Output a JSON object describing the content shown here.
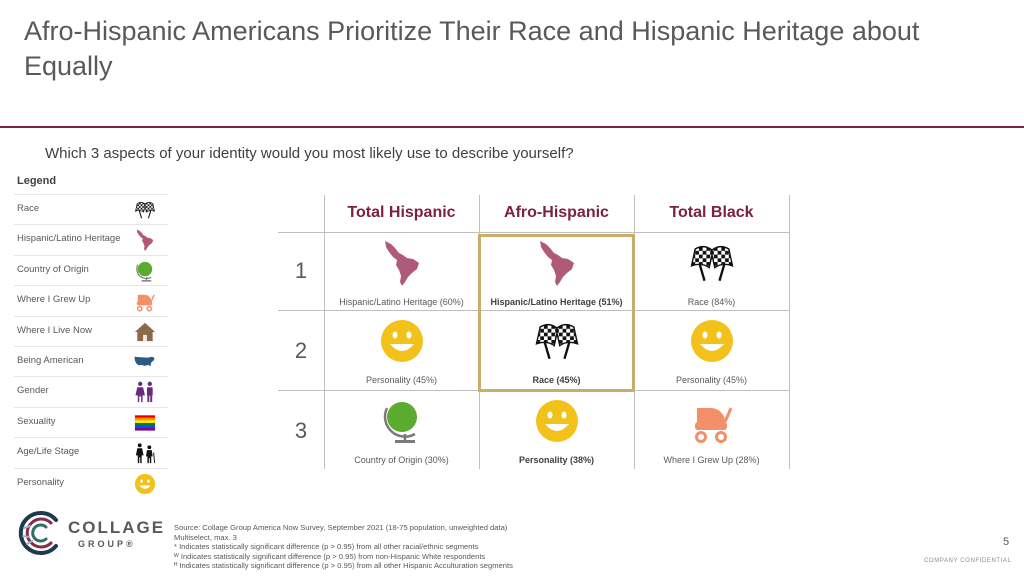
{
  "title": "Afro-Hispanic Americans Prioritize Their Race and Hispanic Heritage about Equally",
  "question": "Which 3 aspects of your identity would you most likely use to describe yourself?",
  "legend": {
    "title": "Legend",
    "items": [
      {
        "label": "Race",
        "icon": "checkered-flags-icon"
      },
      {
        "label": "Hispanic/Latino Heritage",
        "icon": "latin-america-map-icon"
      },
      {
        "label": "Country of Origin",
        "icon": "globe-icon"
      },
      {
        "label": "Where I Grew Up",
        "icon": "baby-stroller-icon"
      },
      {
        "label": "Where I Live Now",
        "icon": "house-icon"
      },
      {
        "label": "Being American",
        "icon": "usa-map-icon"
      },
      {
        "label": "Gender",
        "icon": "gender-icon"
      },
      {
        "label": "Sexuality",
        "icon": "rainbow-flag-icon"
      },
      {
        "label": "Age/Life Stage",
        "icon": "family-icon"
      },
      {
        "label": "Personality",
        "icon": "smiley-icon"
      }
    ]
  },
  "matrix": {
    "columns": [
      "Total Hispanic",
      "Afro-Hispanic",
      "Total Black"
    ],
    "ranks": [
      "1",
      "2",
      "3"
    ],
    "cells": [
      [
        {
          "label": "Hispanic/Latino Heritage (60%)",
          "icon": "latin-america-map-icon",
          "value": 60
        },
        {
          "label": "Hispanic/Latino Heritage  (51%)",
          "icon": "latin-america-map-icon",
          "value": 51
        },
        {
          "label": "Race (84%)",
          "icon": "checkered-flags-icon",
          "value": 84
        }
      ],
      [
        {
          "label": "Personality (45%)",
          "icon": "smiley-icon",
          "value": 45
        },
        {
          "label": "Race (45%)",
          "icon": "checkered-flags-icon",
          "value": 45
        },
        {
          "label": "Personality (45%)",
          "icon": "smiley-icon",
          "value": 45
        }
      ],
      [
        {
          "label": "Country of Origin (30%)",
          "icon": "globe-icon",
          "value": 30
        },
        {
          "label": "Personality (38%)",
          "icon": "smiley-icon",
          "value": 38
        },
        {
          "label": "Where I Grew Up (28%)",
          "icon": "baby-stroller-icon",
          "value": 28
        }
      ]
    ],
    "highlight_color": "#c9ad6b"
  },
  "colors": {
    "accent": "#7b2141",
    "map": "#b05a7a",
    "globe": "#5aab2f",
    "stroller": "#f3906a",
    "house": "#8a6a4a",
    "usa": "#2c5a82",
    "gender": "#6b2a7d",
    "smiley": "#f2c21a",
    "text": "#595959"
  },
  "footer": {
    "logo_line1": "COLLAGE",
    "logo_line2": "GROUP®",
    "source_lines": [
      "Source: Collage Group America Now Survey, September 2021 (18-75 population, unweighted data)",
      "Multiselect, max. 3",
      "* Indicates statistically significant difference (p > 0.95) from all other racial/ethnic segments",
      "ᵂ Indicates statistically significant difference (p > 0.95) from non-Hispanic White respondents",
      "ᴴ Indicates statistically significant difference (p > 0.95) from all other Hispanic Acculturation segments"
    ],
    "page_number": "5",
    "confidential": "COMPANY CONFIDENTIAL"
  }
}
